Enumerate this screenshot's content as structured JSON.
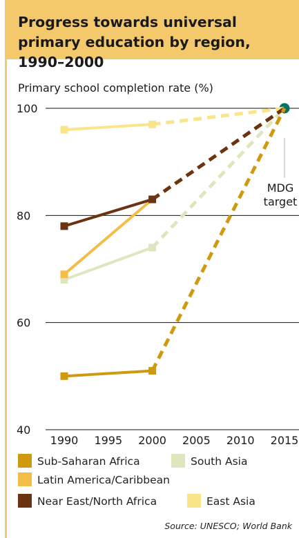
{
  "title": "Progress towards universal primary education by region, 1990–2000",
  "source": "Source: UNESCO; World Bank",
  "colors": {
    "header_bg": "#f3c96b",
    "target_marker": "#0b6e63"
  },
  "chart_data": {
    "type": "line",
    "title": "Progress towards universal primary education by region, 1990–2000",
    "ylabel": "Primary school completion rate (%)",
    "xlabel": "",
    "xlim": [
      1990,
      2015
    ],
    "ylim": [
      40,
      100
    ],
    "xticks": [
      1990,
      1995,
      2000,
      2005,
      2010,
      2015
    ],
    "yticks": [
      40,
      60,
      80,
      100
    ],
    "grid": "horizontal",
    "legend_position": "bottom",
    "annotation": {
      "text_line1": "MDG",
      "text_line2": "target",
      "x": 2015,
      "y": 100
    },
    "series": [
      {
        "name": "Sub-Saharan Africa",
        "color": "#d09a10",
        "x": [
          1990,
          2000
        ],
        "y": [
          50,
          51
        ],
        "projection": {
          "x": [
            2000,
            2015
          ],
          "y": [
            51,
            100
          ]
        }
      },
      {
        "name": "South Asia",
        "color": "#dfe6be",
        "x": [
          1990,
          2000
        ],
        "y": [
          68,
          74
        ],
        "projection": {
          "x": [
            2000,
            2015
          ],
          "y": [
            74,
            100
          ]
        }
      },
      {
        "name": "Latin America/Caribbean",
        "color": "#f2be48",
        "x": [
          1990,
          2000
        ],
        "y": [
          69,
          83
        ],
        "projection": {
          "x": [
            2000,
            2015
          ],
          "y": [
            83,
            100
          ]
        }
      },
      {
        "name": "Near East/North Africa",
        "color": "#6b3312",
        "x": [
          1990,
          2000
        ],
        "y": [
          78,
          83
        ],
        "projection": {
          "x": [
            2000,
            2015
          ],
          "y": [
            83,
            100
          ]
        }
      },
      {
        "name": "East Asia",
        "color": "#fbe58a",
        "x": [
          1990,
          2000
        ],
        "y": [
          96,
          97
        ],
        "projection": {
          "x": [
            2000,
            2015
          ],
          "y": [
            97,
            100
          ]
        }
      }
    ],
    "legend": [
      {
        "label": "Sub-Saharan Africa",
        "color": "#d09a10"
      },
      {
        "label": "South Asia",
        "color": "#dfe6be"
      },
      {
        "label": "Latin America/Caribbean",
        "color": "#f2be48"
      },
      {
        "label": "Near East/North Africa",
        "color": "#6b3312"
      },
      {
        "label": "East Asia",
        "color": "#fbe58a"
      }
    ]
  }
}
